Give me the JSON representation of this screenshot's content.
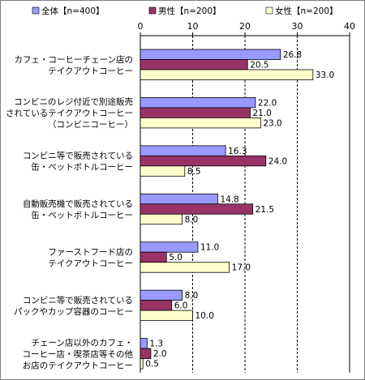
{
  "chart_data": {
    "type": "bar",
    "orientation": "horizontal",
    "categories": [
      [
        "カフェ・コーヒーチェーン店の",
        "テイクアウトコーヒー"
      ],
      [
        "コンビニのレジ付近で別途販売",
        "されているテイクアウトコーヒー",
        "（コンビニコーヒー）"
      ],
      [
        "コンビニ等で販売されている",
        "缶・ペットボトルコーヒー"
      ],
      [
        "自動販売機で販売されている",
        "缶・ペットボトルコーヒー"
      ],
      [
        "ファーストフード店の",
        "テイクアウトコーヒー"
      ],
      [
        "コンビニ等で販売されている",
        "パックやカップ容器のコーヒー"
      ],
      [
        "チェーン店以外のカフェ・",
        "コーヒー店・喫茶店等その他",
        "お店のテイクアウトコーヒー"
      ]
    ],
    "series": [
      {
        "name": "全体【n=400】",
        "color": "#9999ff",
        "values": [
          26.8,
          22.0,
          16.3,
          14.8,
          11.0,
          8.0,
          1.3
        ]
      },
      {
        "name": "男性【n=200】",
        "color": "#993366",
        "values": [
          20.5,
          21.0,
          24.0,
          21.5,
          5.0,
          6.0,
          2.0
        ]
      },
      {
        "name": "女性【n=200】",
        "color": "#ffffcc",
        "values": [
          33.0,
          23.0,
          8.5,
          8.0,
          17.0,
          10.0,
          0.5
        ]
      }
    ],
    "value_labels": [
      [
        "26.8",
        "22.0",
        "16.3",
        "14.8",
        "11.0",
        "8.0",
        "1.3"
      ],
      [
        "20.5",
        "21.0",
        "24.0",
        "21.5",
        "5.0",
        "6.0",
        "2.0"
      ],
      [
        "33.0",
        "23.0",
        "8.5",
        "8.0",
        "17.0",
        "10.0",
        "0.5"
      ]
    ],
    "xticks": [
      "0",
      "10",
      "20",
      "30",
      "40"
    ],
    "xlim": [
      0,
      40
    ],
    "grid": true,
    "legend_position": "top"
  }
}
